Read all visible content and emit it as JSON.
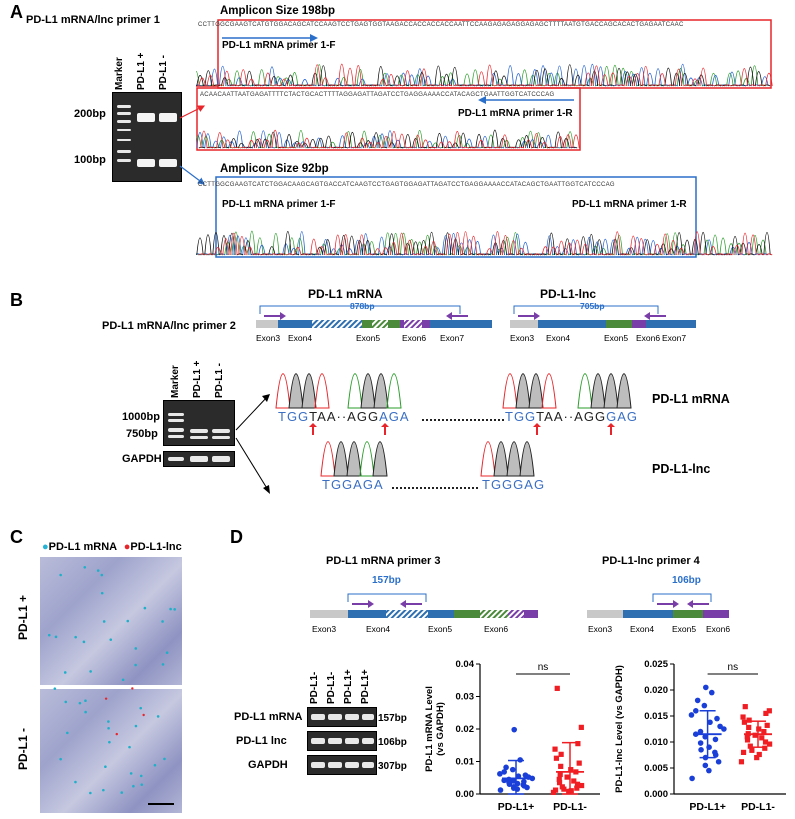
{
  "panels": {
    "a": "A",
    "b": "B",
    "c": "C",
    "d": "D"
  },
  "a": {
    "title": "PD-L1 mRNA/lnc primer 1",
    "lanes": [
      "Marker",
      "PD-L1 +",
      "PD-L1 -"
    ],
    "ladder": [
      "200bp",
      "100bp"
    ],
    "top_box": {
      "amplicon": "Amplicon Size  198bp",
      "primer_f": "PD-L1 mRNA primer 1-F",
      "primer_r": "PD-L1 mRNA primer 1-R",
      "seq1": "CCTTGGCGAAGTCATGTGGACAGCATCCAAGTCCTGAGTGGTAAGACCACCACCACCAATTCCAAGAGAGAGGAGAGCTTTTAATGTGACCAGCACACTGAGAATCAAC",
      "seq2": "ACAACAATTAATGAGATTTTCTACTGCACTTTTAGGAGATTAGATCCTGAGGAAAACCATACAGCTGAATTGGTCATCCCAG"
    },
    "bottom_box": {
      "amplicon": "Amplicon Size  92bp",
      "primer_f": "PD-L1 mRNA primer 1-F",
      "primer_r": "PD-L1 mRNA primer 1-R",
      "seq": "CCTTGGCGAAGTCATCTGGACAAGCAGTGACCATCAAGTCCTGAGTGGAGATTAGATCCTGAGGAAAACCATACAGCTGAATTGGTCATCCCAG"
    }
  },
  "b": {
    "title": "PD-L1 mRNA/lnc primer 2",
    "mrna_title": "PD-L1 mRNA",
    "lnc_title": "PD-L1-lnc",
    "mrna_size": "878bp",
    "lnc_size": "705bp",
    "mrna_exons": [
      "Exon3",
      "Exon4",
      "Exon5",
      "Exon6",
      "Exon7"
    ],
    "lnc_exons": [
      "Exon3",
      "Exon4",
      "Exon5",
      "Exon6",
      "Exon7"
    ],
    "lanes": [
      "Marker",
      "PD-L1 +",
      "PD-L1 -"
    ],
    "ladder": [
      "1000bp",
      "750bp"
    ],
    "gapdh": "GAPDH",
    "seq_mrna": {
      "a1": "TGG",
      "a2": "TAA",
      "b1": "AGG",
      "b2": "AGA",
      "c1": "TGG",
      "c2": "TAA",
      "d1": "AGG",
      "d2": "GAG",
      "label": "PD-L1 mRNA"
    },
    "seq_lnc": {
      "a": "TGGAGA",
      "b": "TGGGAG",
      "label": "PD-L1-lnc"
    }
  },
  "c": {
    "legend_mrna": "PD-L1 mRNA",
    "legend_lnc": "PD-L1-lnc",
    "row1": "PD-L1 +",
    "row2": "PD-L1 -"
  },
  "d": {
    "p3_title": "PD-L1 mRNA primer 3",
    "p4_title": "PD-L1-lnc primer 4",
    "p3_size": "157bp",
    "p4_size": "106bp",
    "p3_exons": [
      "Exon3",
      "Exon4",
      "Exon5",
      "Exon6"
    ],
    "p4_exons": [
      "Exon3",
      "Exon4",
      "Exon5",
      "Exon6"
    ],
    "lanes": [
      "PD-L1-",
      "PD-L1-",
      "PD-L1+",
      "PD-L1+"
    ],
    "rows": [
      {
        "name": "PD-L1 mRNA",
        "size": "157bp"
      },
      {
        "name": "PD-L1 lnc",
        "size": "106bp"
      },
      {
        "name": "GAPDH",
        "size": "307bp"
      }
    ],
    "ns": "ns"
  },
  "colors": {
    "red": "#e8252a",
    "blue": "#2a6fc9",
    "purple": "#7a3ea8",
    "green": "#4a8a3a",
    "navy": "#2d5fa8",
    "dotblue": "#1a3fd8",
    "dotred": "#f01e23"
  },
  "chart_data": [
    {
      "type": "scatter",
      "ylabel": "PD-L1 mRNA Level\n(vs GAPDH)",
      "categories": [
        "PD-L1+",
        "PD-L1-"
      ],
      "ylim": [
        0,
        0.04
      ],
      "yticks": [
        "0.00",
        "0.01",
        "0.02",
        "0.03",
        "0.04"
      ],
      "series": [
        {
          "name": "PD-L1+",
          "color": "#1a3fd8",
          "mean": 0.0048,
          "sd": 0.0055,
          "values": [
            0.0198,
            0.0105,
            0.0082,
            0.0075,
            0.0068,
            0.0062,
            0.0058,
            0.0055,
            0.0052,
            0.0048,
            0.0045,
            0.0042,
            0.004,
            0.0038,
            0.0035,
            0.0032,
            0.003,
            0.0028,
            0.0025,
            0.0022,
            0.002,
            0.0018,
            0.0015,
            0.0012
          ]
        },
        {
          "name": "PD-L1-",
          "color": "#f01e23",
          "mean": 0.0068,
          "sd": 0.009,
          "values": [
            0.0325,
            0.0205,
            0.0155,
            0.0138,
            0.0122,
            0.011,
            0.0095,
            0.0085,
            0.0075,
            0.0068,
            0.006,
            0.0052,
            0.0045,
            0.004,
            0.0035,
            0.003,
            0.0026,
            0.0022,
            0.0018,
            0.0015,
            0.0012,
            0.001,
            0.0008,
            0.0005
          ]
        }
      ]
    },
    {
      "type": "scatter",
      "ylabel": "PD-L1-lnc Level (vs GAPDH)",
      "categories": [
        "PD-L1+",
        "PD-L1-"
      ],
      "ylim": [
        0,
        0.025
      ],
      "yticks": [
        "0.000",
        "0.005",
        "0.010",
        "0.015",
        "0.020",
        "0.025"
      ],
      "series": [
        {
          "name": "PD-L1+",
          "color": "#1a3fd8",
          "mean": 0.0115,
          "sd": 0.0045,
          "values": [
            0.0205,
            0.0195,
            0.018,
            0.017,
            0.016,
            0.0152,
            0.0145,
            0.0138,
            0.013,
            0.0125,
            0.012,
            0.0115,
            0.011,
            0.0105,
            0.0098,
            0.009,
            0.0085,
            0.008,
            0.0075,
            0.007,
            0.0062,
            0.0055,
            0.0045,
            0.003
          ]
        },
        {
          "name": "PD-L1-",
          "color": "#f01e23",
          "mean": 0.0115,
          "sd": 0.0025,
          "values": [
            0.0168,
            0.016,
            0.0155,
            0.0148,
            0.0142,
            0.0138,
            0.0132,
            0.0128,
            0.0125,
            0.012,
            0.0116,
            0.0113,
            0.011,
            0.0108,
            0.0104,
            0.01,
            0.0096,
            0.0092,
            0.0088,
            0.0084,
            0.008,
            0.0076,
            0.007,
            0.0062
          ]
        }
      ]
    }
  ]
}
